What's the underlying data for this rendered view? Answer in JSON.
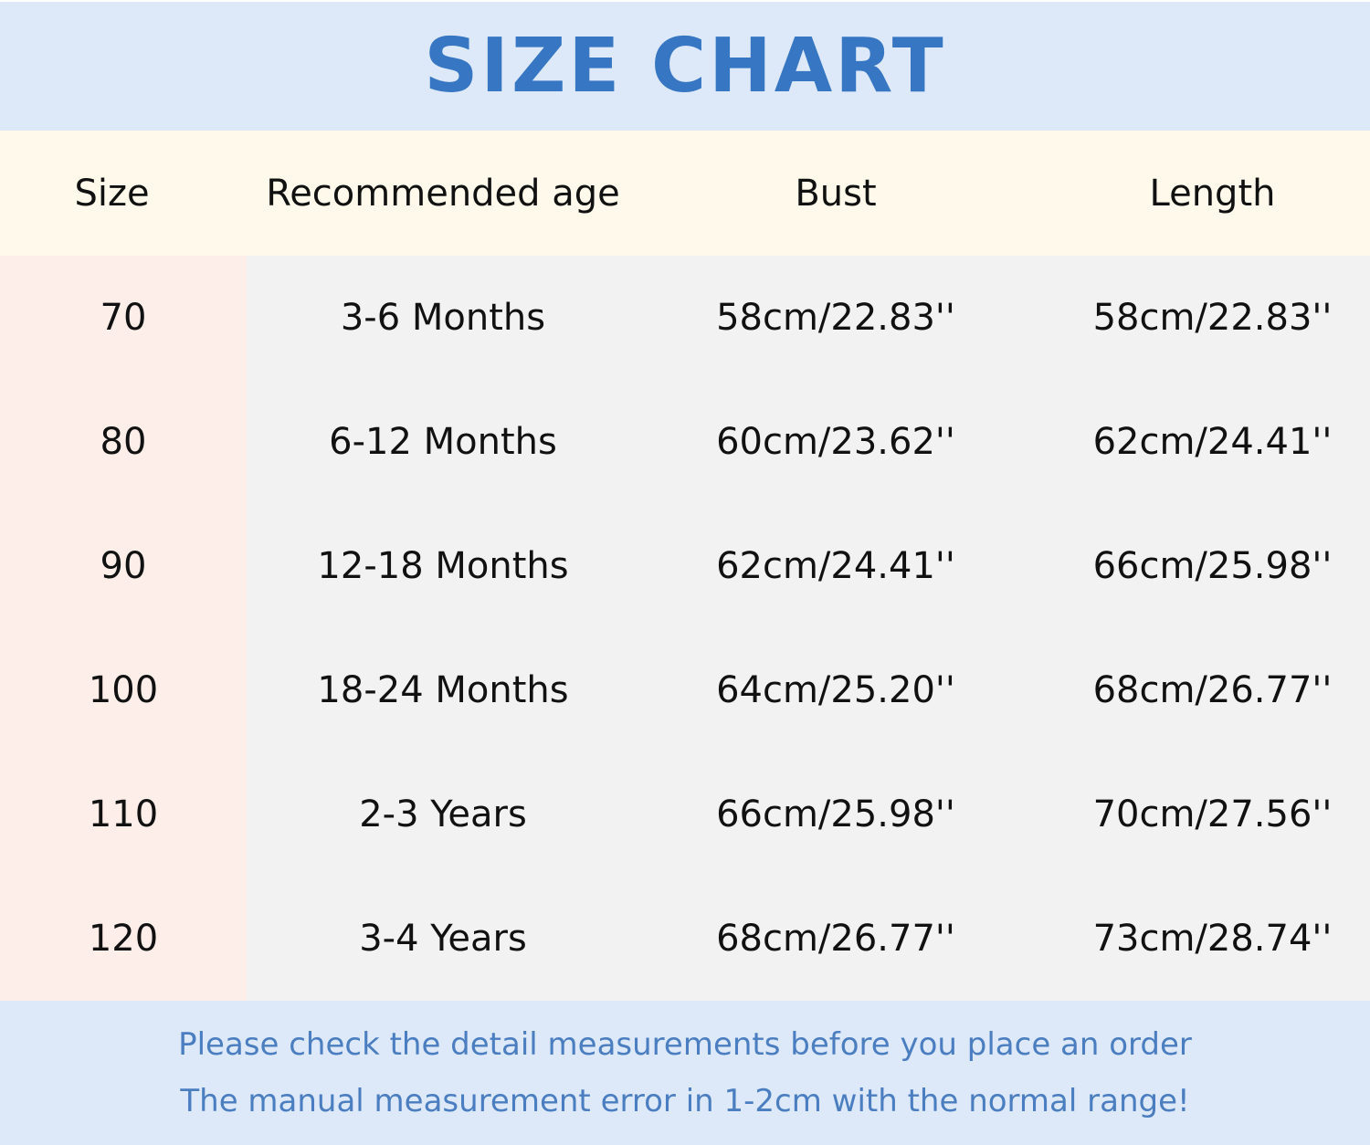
{
  "title": "SIZE CHART",
  "colors": {
    "title": "#3676c2",
    "title_band": "#dde9f8",
    "header_bg": "#fef9ea",
    "size_col_bg": "#fdeee9",
    "body_bg": "#f2f2f2",
    "note_text": "#4a7ec0"
  },
  "table": {
    "headers": [
      "Size",
      "Recommended age",
      "Bust",
      "Length"
    ],
    "rows": [
      [
        "70",
        "3-6 Months",
        "58cm/22.83''",
        "58cm/22.83''"
      ],
      [
        "80",
        "6-12 Months",
        "60cm/23.62''",
        "62cm/24.41''"
      ],
      [
        "90",
        "12-18 Months",
        "62cm/24.41''",
        "66cm/25.98''"
      ],
      [
        "100",
        "18-24 Months",
        "64cm/25.20''",
        "68cm/26.77''"
      ],
      [
        "110",
        "2-3 Years",
        "66cm/25.98''",
        "70cm/27.56''"
      ],
      [
        "120",
        "3-4 Years",
        "68cm/26.77''",
        "73cm/28.74''"
      ]
    ]
  },
  "notes": [
    "Please check the detail measurements before you place an order",
    "The manual measurement error in 1-2cm with the normal range!"
  ]
}
